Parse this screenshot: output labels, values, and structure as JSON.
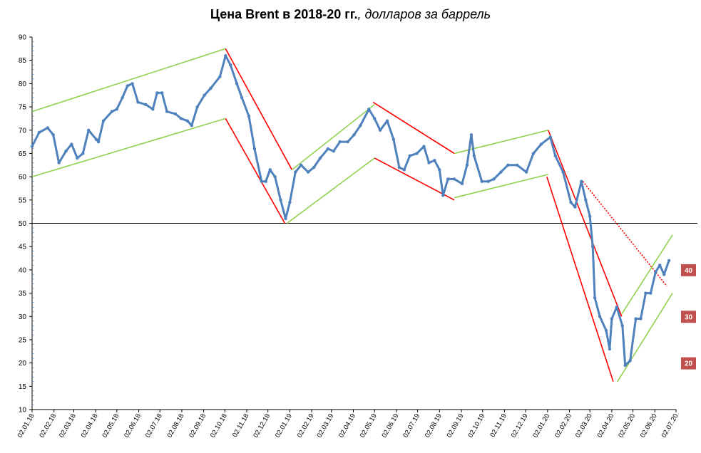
{
  "chart_data": {
    "type": "line",
    "title_bold": "Цена Brent в 2018-20 гг.",
    "title_italic": ", долларов за баррель",
    "xlabel": "",
    "ylabel": "",
    "ylim": [
      10,
      90
    ],
    "y_ticks": [
      10,
      15,
      20,
      25,
      30,
      35,
      40,
      45,
      50,
      55,
      60,
      65,
      70,
      75,
      80,
      85,
      90
    ],
    "x_range": [
      "2018-01-02",
      "2020-07-02"
    ],
    "x_ticks": [
      "02.01.18",
      "02.02.18",
      "02.03.18",
      "02.04.18",
      "02.05.18",
      "02.06.18",
      "02.07.18",
      "02.08.18",
      "02.09.18",
      "02.10.18",
      "02.11.18",
      "02.12.18",
      "02.01.19",
      "02.02.19",
      "02.03.19",
      "02.04.19",
      "02.05.19",
      "02.06.19",
      "02.07.19",
      "02.08.19",
      "02.09.19",
      "02.10.19",
      "02.11.19",
      "02.12.19",
      "02.01.20",
      "02.02.20",
      "02.03.20",
      "02.04.20",
      "02.05.20",
      "02.06.20",
      "02.07.20"
    ],
    "grid": false,
    "reference_line": {
      "y": 50,
      "color": "#000000"
    },
    "series": [
      {
        "color": "#4f81bd",
        "points": [
          [
            "2018-01-02",
            66.5
          ],
          [
            "2018-01-12",
            69.5
          ],
          [
            "2018-01-24",
            70.5
          ],
          [
            "2018-02-01",
            69
          ],
          [
            "2018-02-09",
            63
          ],
          [
            "2018-02-19",
            65.5
          ],
          [
            "2018-02-27",
            67
          ],
          [
            "2018-03-07",
            64
          ],
          [
            "2018-03-15",
            65
          ],
          [
            "2018-03-23",
            70
          ],
          [
            "2018-04-03",
            68
          ],
          [
            "2018-04-06",
            67.5
          ],
          [
            "2018-04-13",
            72
          ],
          [
            "2018-04-25",
            74
          ],
          [
            "2018-05-02",
            74.5
          ],
          [
            "2018-05-10",
            77
          ],
          [
            "2018-05-17",
            79.5
          ],
          [
            "2018-05-24",
            80
          ],
          [
            "2018-06-01",
            76
          ],
          [
            "2018-06-12",
            75.5
          ],
          [
            "2018-06-22",
            74.5
          ],
          [
            "2018-06-28",
            78
          ],
          [
            "2018-07-05",
            78
          ],
          [
            "2018-07-12",
            74
          ],
          [
            "2018-07-24",
            73.5
          ],
          [
            "2018-08-01",
            72.5
          ],
          [
            "2018-08-10",
            72
          ],
          [
            "2018-08-16",
            71
          ],
          [
            "2018-08-24",
            75
          ],
          [
            "2018-09-03",
            77.5
          ],
          [
            "2018-09-12",
            79
          ],
          [
            "2018-09-25",
            81.5
          ],
          [
            "2018-10-03",
            86
          ],
          [
            "2018-10-10",
            84
          ],
          [
            "2018-10-19",
            80
          ],
          [
            "2018-10-26",
            77
          ],
          [
            "2018-11-05",
            73
          ],
          [
            "2018-11-13",
            66
          ],
          [
            "2018-11-23",
            59
          ],
          [
            "2018-11-29",
            59
          ],
          [
            "2018-12-05",
            61.5
          ],
          [
            "2018-12-12",
            60
          ],
          [
            "2018-12-20",
            55
          ],
          [
            "2018-12-27",
            51
          ],
          [
            "2019-01-02",
            54.5
          ],
          [
            "2019-01-10",
            61
          ],
          [
            "2019-01-18",
            62.5
          ],
          [
            "2019-01-28",
            61
          ],
          [
            "2019-02-05",
            62
          ],
          [
            "2019-02-14",
            64
          ],
          [
            "2019-02-25",
            66
          ],
          [
            "2019-03-05",
            65.5
          ],
          [
            "2019-03-14",
            67.5
          ],
          [
            "2019-03-25",
            67.5
          ],
          [
            "2019-04-03",
            69
          ],
          [
            "2019-04-12",
            71
          ],
          [
            "2019-04-24",
            74.5
          ],
          [
            "2019-05-02",
            72.5
          ],
          [
            "2019-05-10",
            70
          ],
          [
            "2019-05-20",
            72
          ],
          [
            "2019-05-29",
            68
          ],
          [
            "2019-06-06",
            62
          ],
          [
            "2019-06-13",
            61.5
          ],
          [
            "2019-06-21",
            64.5
          ],
          [
            "2019-07-01",
            65
          ],
          [
            "2019-07-11",
            66.5
          ],
          [
            "2019-07-18",
            63
          ],
          [
            "2019-07-26",
            63.5
          ],
          [
            "2019-08-02",
            61.5
          ],
          [
            "2019-08-07",
            56
          ],
          [
            "2019-08-14",
            59.5
          ],
          [
            "2019-08-23",
            59.5
          ],
          [
            "2019-09-03",
            58.5
          ],
          [
            "2019-09-10",
            62.5
          ],
          [
            "2019-09-16",
            69
          ],
          [
            "2019-09-20",
            64.5
          ],
          [
            "2019-10-01",
            59
          ],
          [
            "2019-10-10",
            59
          ],
          [
            "2019-10-18",
            59.5
          ],
          [
            "2019-10-28",
            61
          ],
          [
            "2019-11-07",
            62.5
          ],
          [
            "2019-11-20",
            62.5
          ],
          [
            "2019-12-03",
            61
          ],
          [
            "2019-12-13",
            65
          ],
          [
            "2019-12-24",
            67
          ],
          [
            "2020-01-06",
            68.5
          ],
          [
            "2020-01-13",
            64.5
          ],
          [
            "2020-01-24",
            61
          ],
          [
            "2020-02-04",
            54.5
          ],
          [
            "2020-02-10",
            53.5
          ],
          [
            "2020-02-19",
            59
          ],
          [
            "2020-02-25",
            55
          ],
          [
            "2020-03-02",
            51.5
          ],
          [
            "2020-03-06",
            45
          ],
          [
            "2020-03-09",
            34
          ],
          [
            "2020-03-16",
            30
          ],
          [
            "2020-03-25",
            27
          ],
          [
            "2020-03-30",
            23
          ],
          [
            "2020-04-02",
            29.5
          ],
          [
            "2020-04-09",
            32
          ],
          [
            "2020-04-17",
            28
          ],
          [
            "2020-04-21",
            19.5
          ],
          [
            "2020-04-28",
            20.5
          ],
          [
            "2020-05-06",
            29.5
          ],
          [
            "2020-05-13",
            29.5
          ],
          [
            "2020-05-20",
            35
          ],
          [
            "2020-05-27",
            35
          ],
          [
            "2020-06-03",
            39.5
          ],
          [
            "2020-06-09",
            41
          ],
          [
            "2020-06-15",
            39
          ],
          [
            "2020-06-22",
            42
          ]
        ]
      }
    ],
    "trend_lines": [
      {
        "color": "#92d050",
        "x1": "2018-01-02",
        "y1": 74,
        "x2": "2018-10-03",
        "y2": 87.5
      },
      {
        "color": "#92d050",
        "x1": "2018-01-02",
        "y1": 60,
        "x2": "2018-10-03",
        "y2": 72.5
      },
      {
        "color": "#ff0000",
        "x1": "2018-10-03",
        "y1": 87.5,
        "x2": "2019-01-05",
        "y2": 61.5
      },
      {
        "color": "#ff0000",
        "x1": "2018-10-03",
        "y1": 72.5,
        "x2": "2018-12-26",
        "y2": 50
      },
      {
        "color": "#92d050",
        "x1": "2019-01-05",
        "y1": 61.5,
        "x2": "2019-05-02",
        "y2": 75.5
      },
      {
        "color": "#92d050",
        "x1": "2018-12-29",
        "y1": 50,
        "x2": "2019-05-02",
        "y2": 64
      },
      {
        "color": "#ff0000",
        "x1": "2019-04-30",
        "y1": 76,
        "x2": "2019-08-23",
        "y2": 65
      },
      {
        "color": "#ff0000",
        "x1": "2019-05-02",
        "y1": 64,
        "x2": "2019-08-23",
        "y2": 55
      },
      {
        "color": "#92d050",
        "x1": "2019-08-23",
        "y1": 65,
        "x2": "2020-01-03",
        "y2": 70
      },
      {
        "color": "#92d050",
        "x1": "2019-08-23",
        "y1": 55.5,
        "x2": "2020-01-03",
        "y2": 60.5
      },
      {
        "color": "#ff0000",
        "x1": "2020-01-03",
        "y1": 70,
        "x2": "2020-04-16",
        "y2": 30
      },
      {
        "color": "#ff0000",
        "x1": "2020-01-01",
        "y1": 60,
        "x2": "2020-04-04",
        "y2": 16
      },
      {
        "color": "#ff0000",
        "x1": "2020-02-21",
        "y1": 59,
        "x2": "2020-06-19",
        "y2": 36.5,
        "dashed": true
      },
      {
        "color": "#92d050",
        "x1": "2020-04-16",
        "y1": 30.5,
        "x2": "2020-06-27",
        "y2": 47.5
      },
      {
        "color": "#92d050",
        "x1": "2020-04-10",
        "y1": 16,
        "x2": "2020-06-27",
        "y2": 35
      }
    ],
    "badges": [
      {
        "label": "40",
        "value": 40,
        "color": "#c0504d"
      },
      {
        "label": "30",
        "value": 30,
        "color": "#c0504d"
      },
      {
        "label": "20",
        "value": 20,
        "color": "#c0504d"
      }
    ]
  }
}
